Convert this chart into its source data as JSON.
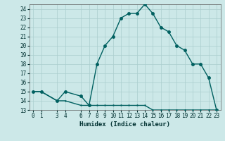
{
  "x": [
    0,
    1,
    3,
    4,
    6,
    7,
    8,
    9,
    10,
    11,
    12,
    13,
    14,
    15,
    16,
    17,
    18,
    19,
    20,
    21,
    22,
    23
  ],
  "y_main": [
    15,
    15,
    14,
    15,
    14.5,
    13.5,
    18,
    20,
    21,
    23,
    23.5,
    23.5,
    24.5,
    23.5,
    22,
    21.5,
    20,
    19.5,
    18,
    18,
    16.5,
    13
  ],
  "y_base": [
    15,
    15,
    14,
    14,
    13.5,
    13.5,
    13.5,
    13.5,
    13.5,
    13.5,
    13.5,
    13.5,
    13.5,
    13,
    13,
    13,
    13,
    13,
    13,
    13,
    13,
    13
  ],
  "line_color": "#006060",
  "bg_color": "#cce8e8",
  "grid_color": "#aacece",
  "xlabel": "Humidex (Indice chaleur)",
  "xlim": [
    -0.5,
    23.5
  ],
  "ylim": [
    13,
    24.5
  ],
  "yticks": [
    13,
    14,
    15,
    16,
    17,
    18,
    19,
    20,
    21,
    22,
    23,
    24
  ],
  "xticks": [
    0,
    1,
    3,
    4,
    6,
    7,
    8,
    9,
    10,
    11,
    12,
    13,
    14,
    15,
    16,
    17,
    18,
    19,
    20,
    21,
    22,
    23
  ],
  "marker_size": 2.5,
  "line_width": 1.0
}
